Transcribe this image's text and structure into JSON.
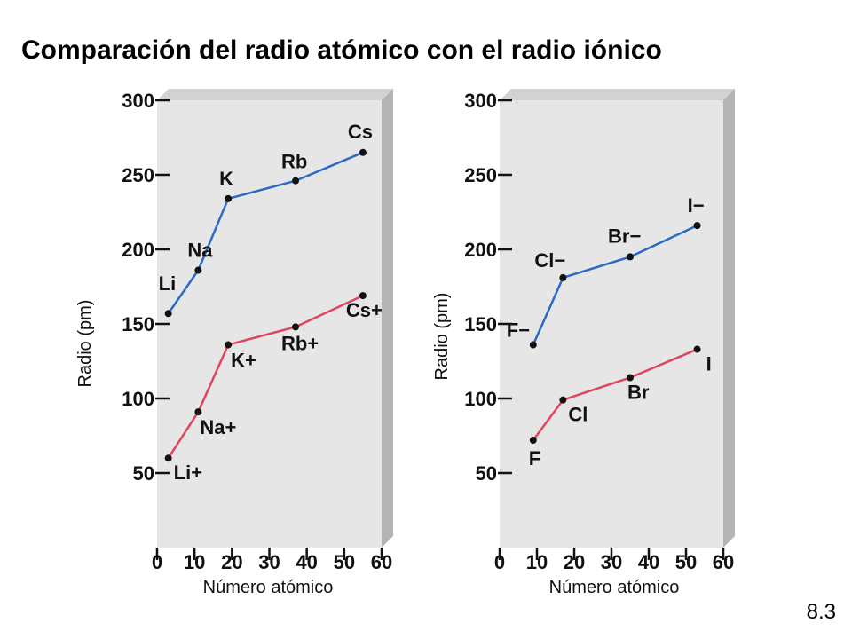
{
  "title": "Comparación del radio atómico con el radio iónico",
  "slide_number": "8.3",
  "colors": {
    "atomic": "#2a6cc4",
    "ionic": "#e0455e",
    "panel": "#e6e6e6",
    "panel_side": "#b4b4b4"
  },
  "chart_data": [
    {
      "type": "line",
      "xlabel": "Número atómico",
      "ylabel": "Radio (pm)",
      "xlim": [
        0,
        60
      ],
      "ylim": [
        0,
        300
      ],
      "xticks": [
        "0",
        "10",
        "20",
        "30",
        "40",
        "50",
        "60"
      ],
      "yticks": [
        "50",
        "100",
        "150",
        "200",
        "250",
        "300"
      ],
      "series": [
        {
          "points": [
            {
              "x": 3,
              "y": 157,
              "label": "Li"
            },
            {
              "x": 11,
              "y": 186,
              "label": "Na"
            },
            {
              "x": 19,
              "y": 234,
              "label": "K"
            },
            {
              "x": 37,
              "y": 246,
              "label": "Rb"
            },
            {
              "x": 55,
              "y": 265,
              "label": "Cs"
            }
          ]
        },
        {
          "points": [
            {
              "x": 3,
              "y": 60,
              "label": "Li+"
            },
            {
              "x": 11,
              "y": 91,
              "label": "Na+"
            },
            {
              "x": 19,
              "y": 136,
              "label": "K+"
            },
            {
              "x": 37,
              "y": 148,
              "label": "Rb+"
            },
            {
              "x": 55,
              "y": 169,
              "label": "Cs+"
            }
          ]
        }
      ]
    },
    {
      "type": "line",
      "xlabel": "Número atómico",
      "ylabel": "Radio (pm)",
      "xlim": [
        0,
        60
      ],
      "ylim": [
        0,
        300
      ],
      "xticks": [
        "0",
        "10",
        "20",
        "30",
        "40",
        "50",
        "60"
      ],
      "yticks": [
        "50",
        "100",
        "150",
        "200",
        "250",
        "300"
      ],
      "series": [
        {
          "points": [
            {
              "x": 9,
              "y": 136,
              "label": "F−"
            },
            {
              "x": 17,
              "y": 181,
              "label": "Cl−"
            },
            {
              "x": 35,
              "y": 195,
              "label": "Br−"
            },
            {
              "x": 53,
              "y": 216,
              "label": "I−"
            }
          ]
        },
        {
          "points": [
            {
              "x": 9,
              "y": 72,
              "label": "F"
            },
            {
              "x": 17,
              "y": 99,
              "label": "Cl"
            },
            {
              "x": 35,
              "y": 114,
              "label": "Br"
            },
            {
              "x": 53,
              "y": 133,
              "label": "I"
            }
          ]
        }
      ]
    }
  ]
}
